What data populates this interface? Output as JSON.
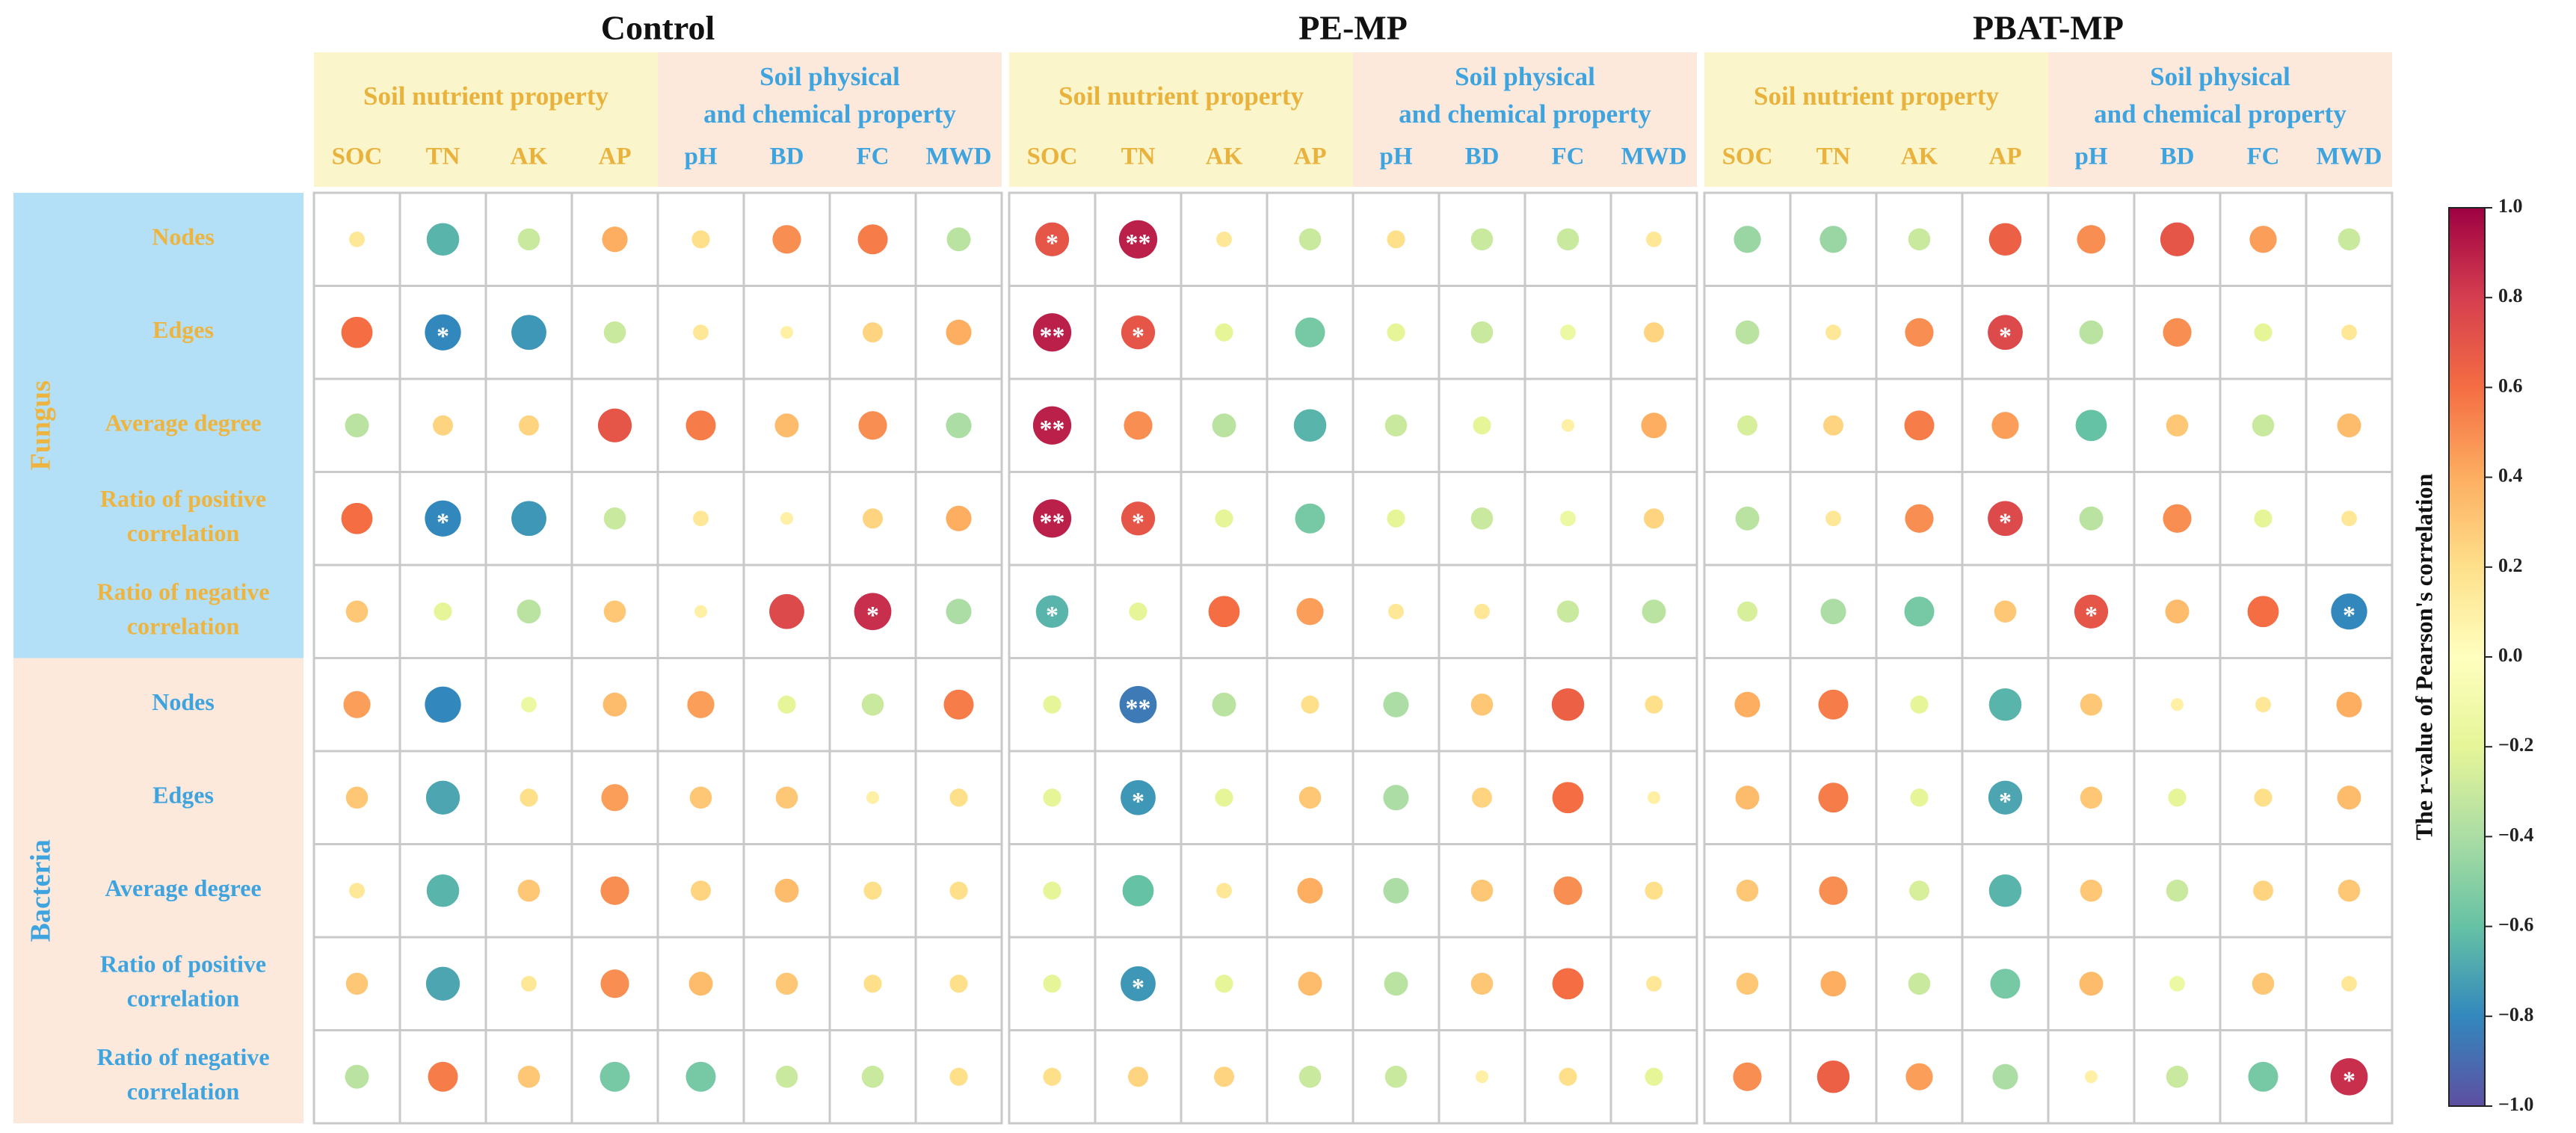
{
  "chart_data": {
    "type": "bubble-correlation-matrix",
    "color_scale": "Spectral (reversed)",
    "colorbar": {
      "title": "The r-value of Pearson's correlation",
      "range": [
        -1.0,
        1.0
      ],
      "ticks": [
        1.0,
        0.8,
        0.6,
        0.4,
        0.2,
        0.0,
        -0.2,
        -0.4,
        -0.6,
        -0.8,
        -1.0
      ],
      "tick_labels": [
        "1.0",
        "0.8",
        "0.6",
        "0.4",
        "0.2",
        "0.0",
        "−0.2",
        "−0.4",
        "−0.6",
        "−0.8",
        "−1.0"
      ]
    },
    "colors": {
      "nutrient_header_bg": "#fbf5cb",
      "physchem_header_bg": "#fde8dc",
      "nutrient_text": "#e9b23d",
      "physchem_text": "#3ea4df",
      "fungus_bg": "#b3e0f6",
      "fungus_text": "#eeb440",
      "bacteria_bg": "#fde8dc",
      "bacteria_text": "#3ea4df",
      "grid": "#c9c9c9"
    },
    "groups": [
      {
        "label": "Soil nutrient property",
        "variables": [
          "SOC",
          "TN",
          "AK",
          "AP"
        ]
      },
      {
        "label": "Soil physical and chemical property",
        "label_lines": [
          "Soil physical",
          "and chemical property"
        ],
        "variables": [
          "pH",
          "BD",
          "FC",
          "MWD"
        ]
      }
    ],
    "variables": [
      "SOC",
      "TN",
      "AK",
      "AP",
      "pH",
      "BD",
      "FC",
      "MWD"
    ],
    "row_groups": [
      {
        "label": "Fungus",
        "rows": [
          {
            "label": "Nodes",
            "lines": [
              "Nodes"
            ]
          },
          {
            "label": "Edges",
            "lines": [
              "Edges"
            ]
          },
          {
            "label": "Average degree",
            "lines": [
              "Average degree"
            ]
          },
          {
            "label": "Ratio of positive correlation",
            "lines": [
              "Ratio of positive",
              "correlation"
            ]
          },
          {
            "label": "Ratio of negative correlation",
            "lines": [
              "Ratio of negative",
              "correlation"
            ]
          }
        ]
      },
      {
        "label": "Bacteria",
        "rows": [
          {
            "label": "Nodes",
            "lines": [
              "Nodes"
            ]
          },
          {
            "label": "Edges",
            "lines": [
              "Edges"
            ]
          },
          {
            "label": "Average degree",
            "lines": [
              "Average degree"
            ]
          },
          {
            "label": "Ratio of positive correlation",
            "lines": [
              "Ratio of positive",
              "correlation"
            ]
          },
          {
            "label": "Ratio of negative correlation",
            "lines": [
              "Ratio of negative",
              "correlation"
            ]
          }
        ]
      }
    ],
    "panels": [
      {
        "title": "Control",
        "r": [
          [
            0.15,
            -0.65,
            -0.3,
            0.4,
            0.2,
            0.5,
            0.55,
            -0.35
          ],
          [
            0.6,
            -0.8,
            -0.75,
            -0.3,
            0.15,
            0.1,
            0.25,
            0.4
          ],
          [
            -0.35,
            0.25,
            0.25,
            0.7,
            0.55,
            0.35,
            0.5,
            -0.4
          ],
          [
            0.6,
            -0.8,
            -0.75,
            -0.3,
            0.15,
            0.1,
            0.25,
            0.4
          ],
          [
            0.3,
            -0.2,
            -0.35,
            0.3,
            0.1,
            0.75,
            0.85,
            -0.4
          ],
          [
            0.45,
            -0.8,
            -0.15,
            0.35,
            0.45,
            -0.2,
            -0.3,
            0.55
          ],
          [
            0.3,
            -0.7,
            0.2,
            0.45,
            0.3,
            0.3,
            0.1,
            0.2
          ],
          [
            0.15,
            -0.65,
            0.3,
            0.5,
            0.25,
            0.35,
            0.2,
            0.2
          ],
          [
            0.3,
            -0.7,
            0.15,
            0.5,
            0.35,
            0.3,
            0.2,
            0.2
          ],
          [
            -0.35,
            0.55,
            0.3,
            -0.55,
            -0.55,
            -0.3,
            -0.3,
            0.2
          ]
        ],
        "sig": [
          [
            "",
            "",
            "",
            "",
            "",
            "",
            "",
            ""
          ],
          [
            "",
            "*",
            "",
            "",
            "",
            "",
            "",
            ""
          ],
          [
            "",
            "",
            "",
            "",
            "",
            "",
            "",
            ""
          ],
          [
            "",
            "*",
            "",
            "",
            "",
            "",
            "",
            ""
          ],
          [
            "",
            "",
            "",
            "",
            "",
            "",
            "*",
            ""
          ],
          [
            "",
            "",
            "",
            "",
            "",
            "",
            "",
            ""
          ],
          [
            "",
            "",
            "",
            "",
            "",
            "",
            "",
            ""
          ],
          [
            "",
            "",
            "",
            "",
            "",
            "",
            "",
            ""
          ],
          [
            "",
            "",
            "",
            "",
            "",
            "",
            "",
            ""
          ],
          [
            "",
            "",
            "",
            "",
            "",
            "",
            "",
            ""
          ]
        ]
      },
      {
        "title": "PE-MP",
        "r": [
          [
            0.7,
            0.9,
            0.15,
            -0.3,
            0.2,
            -0.3,
            -0.3,
            0.15
          ],
          [
            0.9,
            0.7,
            -0.2,
            -0.55,
            -0.2,
            -0.3,
            -0.15,
            0.25
          ],
          [
            0.9,
            0.5,
            -0.35,
            -0.65,
            -0.3,
            -0.2,
            0.1,
            0.4
          ],
          [
            0.9,
            0.7,
            -0.2,
            -0.55,
            -0.2,
            -0.3,
            -0.15,
            0.25
          ],
          [
            -0.65,
            -0.2,
            0.6,
            0.45,
            0.15,
            0.15,
            -0.3,
            -0.35
          ],
          [
            -0.2,
            -0.85,
            -0.35,
            0.2,
            -0.4,
            0.3,
            0.65,
            0.2
          ],
          [
            -0.2,
            -0.75,
            -0.2,
            0.3,
            -0.4,
            0.25,
            0.6,
            0.1
          ],
          [
            -0.2,
            -0.6,
            0.15,
            0.4,
            -0.4,
            0.3,
            0.5,
            0.2
          ],
          [
            -0.2,
            -0.75,
            -0.2,
            0.35,
            -0.35,
            0.3,
            0.6,
            0.15
          ],
          [
            0.2,
            0.25,
            0.25,
            -0.3,
            -0.3,
            0.1,
            0.2,
            -0.2
          ]
        ],
        "sig": [
          [
            "*",
            "**",
            "",
            "",
            "",
            "",
            "",
            ""
          ],
          [
            "**",
            "*",
            "",
            "",
            "",
            "",
            "",
            ""
          ],
          [
            "**",
            "",
            "",
            "",
            "",
            "",
            "",
            ""
          ],
          [
            "**",
            "*",
            "",
            "",
            "",
            "",
            "",
            ""
          ],
          [
            "*",
            "",
            "",
            "",
            "",
            "",
            "",
            ""
          ],
          [
            "",
            "**",
            "",
            "",
            "",
            "",
            "",
            ""
          ],
          [
            "",
            "*",
            "",
            "",
            "",
            "",
            "",
            ""
          ],
          [
            "",
            "",
            "",
            "",
            "",
            "",
            "",
            ""
          ],
          [
            "",
            "*",
            "",
            "",
            "",
            "",
            "",
            ""
          ],
          [
            "",
            "",
            "",
            "",
            "",
            "",
            "",
            ""
          ]
        ]
      },
      {
        "title": "PBAT-MP",
        "r": [
          [
            -0.45,
            -0.45,
            -0.3,
            0.65,
            0.5,
            0.7,
            0.45,
            -0.3
          ],
          [
            -0.35,
            0.15,
            0.5,
            0.75,
            -0.35,
            0.5,
            -0.2,
            0.15
          ],
          [
            -0.25,
            0.25,
            0.55,
            0.45,
            -0.6,
            0.3,
            -0.3,
            0.35
          ],
          [
            -0.35,
            0.15,
            0.5,
            0.75,
            -0.35,
            0.5,
            -0.2,
            0.15
          ],
          [
            -0.25,
            -0.4,
            -0.55,
            0.3,
            0.7,
            0.35,
            0.6,
            -0.8
          ],
          [
            0.4,
            0.55,
            -0.2,
            -0.65,
            0.3,
            0.1,
            0.15,
            0.4
          ],
          [
            0.35,
            0.55,
            -0.2,
            -0.7,
            0.3,
            -0.2,
            0.2,
            0.35
          ],
          [
            0.3,
            0.5,
            -0.25,
            -0.65,
            0.3,
            -0.3,
            0.25,
            0.3
          ],
          [
            0.3,
            0.4,
            -0.3,
            -0.55,
            0.35,
            -0.15,
            0.3,
            0.15
          ],
          [
            0.5,
            0.65,
            0.45,
            -0.4,
            0.1,
            -0.3,
            -0.55,
            0.85
          ]
        ],
        "sig": [
          [
            "",
            "",
            "",
            "",
            "",
            "",
            "",
            ""
          ],
          [
            "",
            "",
            "",
            "*",
            "",
            "",
            "",
            ""
          ],
          [
            "",
            "",
            "",
            "",
            "",
            "",
            "",
            ""
          ],
          [
            "",
            "",
            "",
            "*",
            "",
            "",
            "",
            ""
          ],
          [
            "",
            "",
            "",
            "",
            "*",
            "",
            "",
            "*"
          ],
          [
            "",
            "",
            "",
            "",
            "",
            "",
            "",
            ""
          ],
          [
            "",
            "",
            "",
            "*",
            "",
            "",
            "",
            ""
          ],
          [
            "",
            "",
            "",
            "",
            "",
            "",
            "",
            ""
          ],
          [
            "",
            "",
            "",
            "",
            "",
            "",
            "",
            ""
          ],
          [
            "",
            "",
            "",
            "",
            "",
            "",
            "",
            "*"
          ]
        ]
      }
    ]
  }
}
